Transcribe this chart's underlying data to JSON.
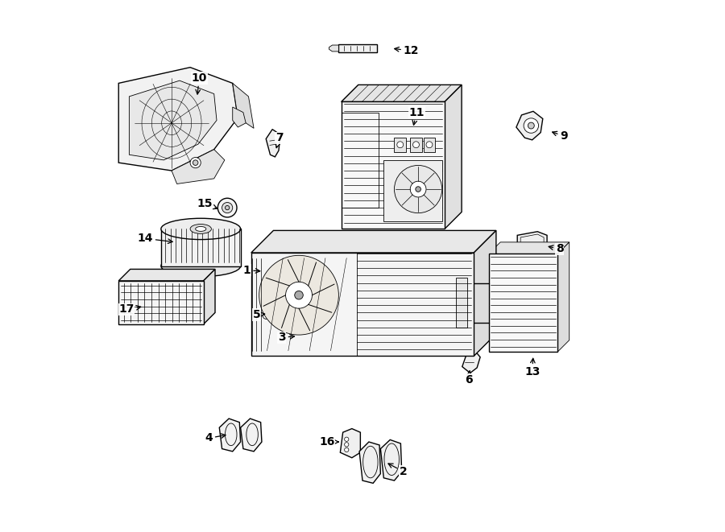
{
  "bg_color": "#ffffff",
  "line_color": "#000000",
  "fig_width": 9.0,
  "fig_height": 6.61,
  "dpi": 100,
  "lw_thin": 0.6,
  "lw_med": 1.0,
  "lw_thick": 1.5,
  "label_fontsize": 10,
  "parts_labels": {
    "1": [
      0.285,
      0.495,
      0.32,
      0.5
    ],
    "2": [
      0.57,
      0.115,
      0.525,
      0.125
    ],
    "3": [
      0.345,
      0.365,
      0.375,
      0.368
    ],
    "4": [
      0.215,
      0.175,
      0.255,
      0.178
    ],
    "5": [
      0.305,
      0.41,
      0.328,
      0.413
    ],
    "6": [
      0.7,
      0.29,
      0.7,
      0.31
    ],
    "7": [
      0.345,
      0.74,
      0.338,
      0.715
    ],
    "8": [
      0.87,
      0.535,
      0.843,
      0.54
    ],
    "9": [
      0.878,
      0.745,
      0.85,
      0.752
    ],
    "10": [
      0.19,
      0.855,
      0.185,
      0.82
    ],
    "11": [
      0.6,
      0.79,
      0.59,
      0.762
    ],
    "12": [
      0.59,
      0.908,
      0.553,
      0.908
    ],
    "13": [
      0.82,
      0.305,
      0.82,
      0.335
    ],
    "14": [
      0.095,
      0.555,
      0.148,
      0.548
    ],
    "15": [
      0.205,
      0.617,
      0.238,
      0.607
    ],
    "16": [
      0.435,
      0.17,
      0.462,
      0.17
    ],
    "17": [
      0.06,
      0.42,
      0.092,
      0.424
    ]
  }
}
